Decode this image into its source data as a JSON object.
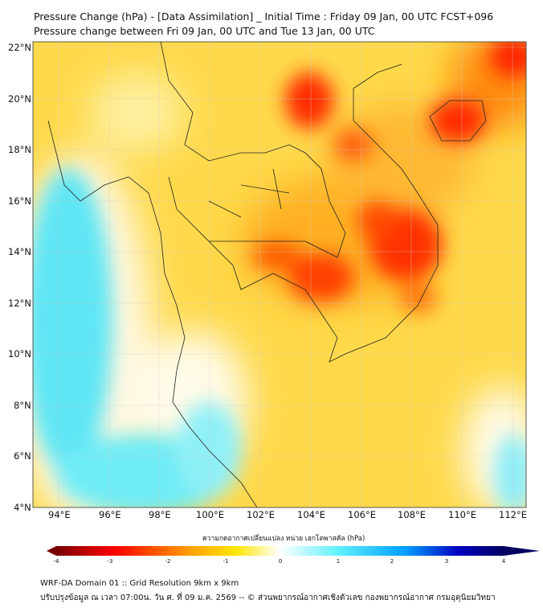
{
  "title": {
    "line1": "Pressure Change (hPa) - [Data Assimilation] _ Initial Time : Friday 09 Jan, 00 UTC FCST+096",
    "line2": "Pressure change between Fri 09 Jan, 00 UTC and Tue 13 Jan, 00 UTC"
  },
  "axes": {
    "lat_labels": [
      "22°N",
      "20°N",
      "18°N",
      "16°N",
      "14°N",
      "12°N",
      "10°N",
      "8°N",
      "6°N",
      "4°N"
    ],
    "lon_labels": [
      "94°E",
      "96°E",
      "98°E",
      "100°E",
      "102°E",
      "104°E",
      "106°E",
      "108°E",
      "110°E",
      "112°E"
    ]
  },
  "colorbar": {
    "label": "ความกดอากาศเปลี่ยนแปลง หน่วย เฮกโตพาสคัล (hPa)",
    "ticks": [
      "-4",
      "-3",
      "-2",
      "-1",
      "0",
      "1",
      "2",
      "3",
      "4"
    ],
    "range": [
      -4,
      4
    ],
    "colors": [
      "#7a0000",
      "#ff0000",
      "#ffa000",
      "#ffe600",
      "#ffffff",
      "#60f0ff",
      "#00a0ff",
      "#0000c0",
      "#000060"
    ]
  },
  "footer": {
    "line1": "WRF-DA Domain 01 :: Grid Resolution 9km x 9km",
    "line2": "ปรับปรุงข้อมูล ณ เวลา 07:00น. วัน ศ. ที่ 09 ม.ค. 2569 -- © ส่วนพยากรณ์อากาศเชิงตัวเลข กองพยากรณ์อากาศ กรมอุตุนิยมวิทยา"
  }
}
